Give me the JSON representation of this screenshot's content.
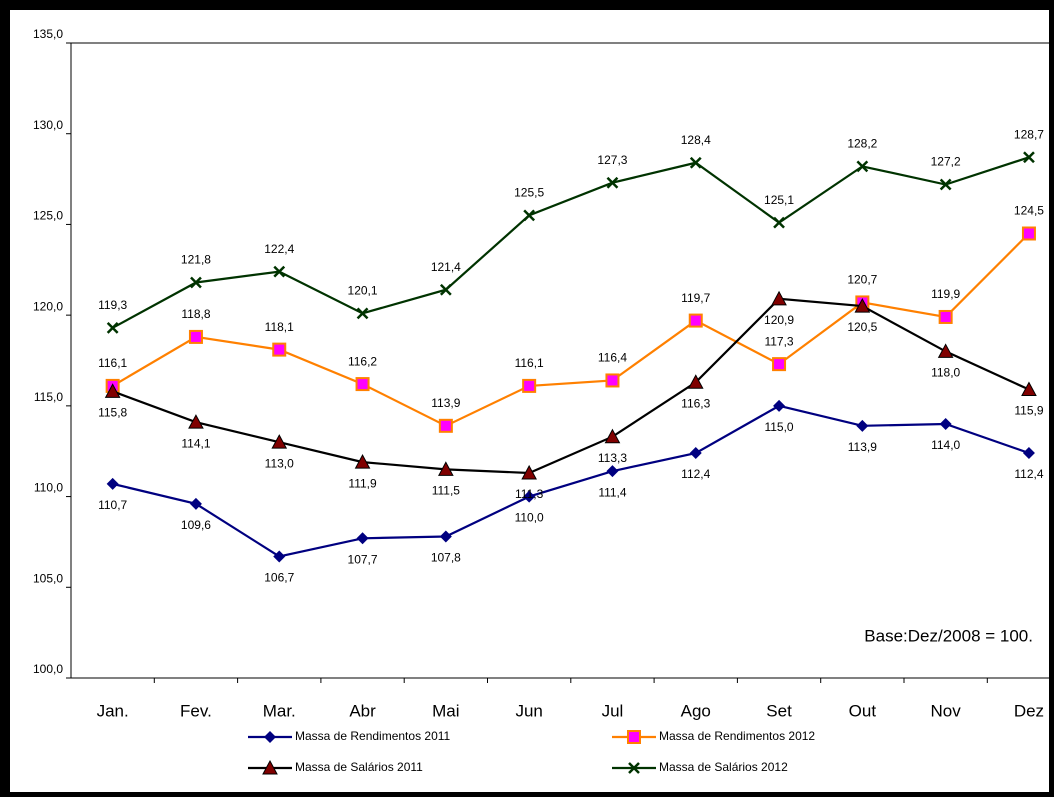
{
  "chart_data": {
    "type": "line",
    "categories": [
      "Jan.",
      "Fev.",
      "Mar.",
      "Abr",
      "Mai",
      "Jun",
      "Jul",
      "Ago",
      "Set",
      "Out",
      "Nov",
      "Dez"
    ],
    "ylim": [
      100,
      135
    ],
    "yticks": [
      {
        "value": 100,
        "label": "100,0"
      },
      {
        "value": 105,
        "label": "105,0"
      },
      {
        "value": 110,
        "label": "110,0"
      },
      {
        "value": 115,
        "label": "115,0"
      },
      {
        "value": 120,
        "label": "120,0"
      },
      {
        "value": 125,
        "label": "125,0"
      },
      {
        "value": 130,
        "label": "130,0"
      },
      {
        "value": 135,
        "label": "135,0"
      }
    ],
    "annotation": "Base:Dez/2008 = 100.",
    "series": [
      {
        "name": "Massa de Rendimentos 2011",
        "color": "#000080",
        "marker": "diamond",
        "marker_color": "#000080",
        "values": [
          110.7,
          109.6,
          106.7,
          107.7,
          107.8,
          110.0,
          111.4,
          112.4,
          115.0,
          113.9,
          114.0,
          112.4
        ],
        "value_labels": [
          "110,7",
          "109,6",
          "106,7",
          "107,7",
          "107,8",
          "110,0",
          "111,4",
          "112,4",
          "115,0",
          "113,9",
          "114,0",
          "112,4"
        ]
      },
      {
        "name": "Massa de Rendimentos 2012",
        "color": "#ff8000",
        "marker": "square",
        "marker_color": "#ff00ff",
        "values": [
          116.1,
          118.8,
          118.1,
          116.2,
          113.9,
          116.1,
          116.4,
          119.7,
          117.3,
          120.7,
          119.9,
          124.5
        ],
        "value_labels": [
          "116,1",
          "118,8",
          "118,1",
          "116,2",
          "113,9",
          "116,1",
          "116,4",
          "119,7",
          "117,3",
          "120,7",
          "119,9",
          "124,5"
        ]
      },
      {
        "name": "Massa de Salários  2011",
        "color": "#000000",
        "marker": "triangle",
        "marker_color": "#800000",
        "values": [
          115.8,
          114.1,
          113.0,
          111.9,
          111.5,
          111.3,
          113.3,
          116.3,
          120.9,
          120.5,
          118.0,
          115.9
        ],
        "value_labels": [
          "115,8",
          "114,1",
          "113,0",
          "111,9",
          "111,5",
          "111,3",
          "113,3",
          "116,3",
          "120,9",
          "120,5",
          "118,0",
          "115,9"
        ]
      },
      {
        "name": "Massa de Salários  2012",
        "color": "#003300",
        "marker": "x",
        "marker_color": "#003300",
        "values": [
          119.3,
          121.8,
          122.4,
          120.1,
          121.4,
          125.5,
          127.3,
          128.4,
          125.1,
          128.2,
          127.2,
          128.7
        ],
        "value_labels": [
          "119,3",
          "121,8",
          "122,4",
          "120,1",
          "121,4",
          "125,5",
          "127,3",
          "128,4",
          "125,1",
          "128,2",
          "127,2",
          "128,7"
        ]
      }
    ]
  }
}
